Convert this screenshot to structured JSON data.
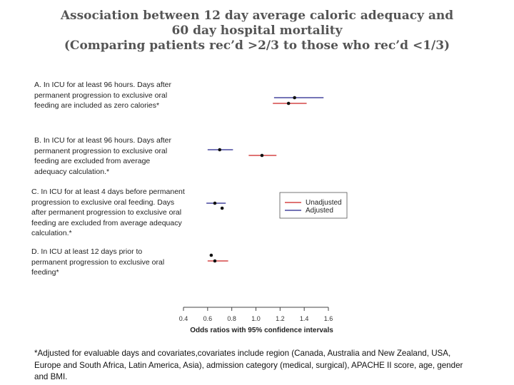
{
  "title": {
    "line1": "Association between 12 day average caloric adequacy and",
    "line2": "60 day hospital mortality",
    "line3": "(Comparing patients rec’d >2/3 to those who rec’d <1/3)"
  },
  "panels": [
    {
      "letter": "A",
      "text": ". In ICU for at least 96 hours. Days after permanent progression to exclusive oral feeding are included as zero calories*"
    },
    {
      "letter": "B",
      "text": ". In ICU for at least 96 hours. Days after permanent progression to exclusive oral feeding are excluded from average adequacy calculation.*"
    },
    {
      "letter": "C",
      "text": ". In ICU for at least 4 days before permanent progression to exclusive oral feeding. Days after permanent progression to exclusive oral feeding are excluded from average adequacy calculation.*"
    },
    {
      "letter": "D",
      "text": ". In ICU at least 12 days prior to permanent progression to exclusive oral feeding*"
    }
  ],
  "footnote": "*Adjusted for evaluable days and covariates,covariates include region (Canada, Australia and New Zealand, USA, Europe and South Africa, Latin America, Asia), admission category (medical, surgical), APACHE II score, age, gender and BMI.",
  "chart_data": {
    "type": "forest",
    "xlabel": "Odds ratios with 95% confidence intervals",
    "xlim": [
      0.4,
      1.6
    ],
    "ticks": [
      "0.4",
      "0.6",
      "0.8",
      "1.0",
      "1.2",
      "1.4",
      "1.6"
    ],
    "legend": [
      "Unadjusted",
      "Adjusted"
    ],
    "colors": {
      "Unadjusted": "#cc2222",
      "Adjusted": "#22228a"
    },
    "rows": [
      {
        "panel": "A",
        "series": "Adjusted",
        "estimate": 1.32,
        "low": 1.15,
        "high": 1.56
      },
      {
        "panel": "A",
        "series": "Unadjusted",
        "estimate": 1.27,
        "low": 1.14,
        "high": 1.42
      },
      {
        "panel": "B",
        "series": "Adjusted",
        "estimate": 0.7,
        "low": 0.6,
        "high": 0.81
      },
      {
        "panel": "B",
        "series": "Unadjusted",
        "estimate": 1.05,
        "low": 0.94,
        "high": 1.17
      },
      {
        "panel": "C",
        "series": "Adjusted",
        "estimate": 0.66,
        "low": 0.59,
        "high": 0.75
      },
      {
        "panel": "C",
        "series": "Unadjusted",
        "estimate": 0.72,
        "low": null,
        "high": null
      },
      {
        "panel": "D",
        "series": "Adjusted",
        "estimate": 0.63,
        "low": null,
        "high": null
      },
      {
        "panel": "D",
        "series": "Unadjusted",
        "estimate": 0.66,
        "low": 0.6,
        "high": 0.77
      }
    ]
  }
}
